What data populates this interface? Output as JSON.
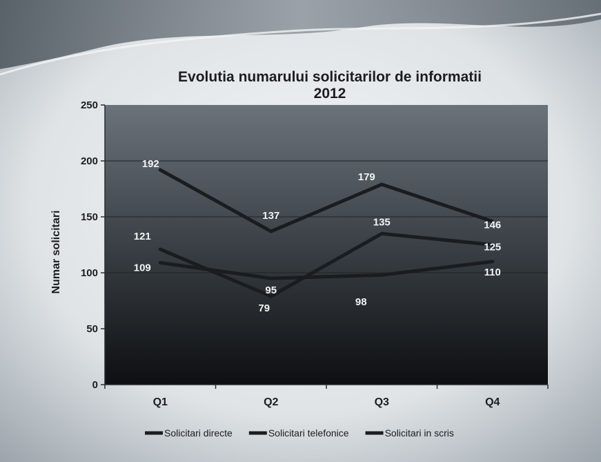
{
  "chart_data": {
    "type": "line",
    "title": "Evolutia numarului solicitarilor de informatii",
    "subtitle": "2012",
    "xlabel": "",
    "ylabel": "Numar solicitari",
    "categories": [
      "Q1",
      "Q2",
      "Q3",
      "Q4"
    ],
    "ylim": [
      0,
      250
    ],
    "yticks": [
      0,
      50,
      100,
      150,
      200,
      250
    ],
    "grid": true,
    "legend_position": "bottom",
    "series": [
      {
        "name": "Solicitari directe",
        "values": [
          192,
          137,
          179,
          146
        ],
        "color": "#1a1c1f"
      },
      {
        "name": "Solicitari telefonice",
        "values": [
          121,
          79,
          135,
          125
        ],
        "color": "#1a1c1f"
      },
      {
        "name": "Solicitari in scris",
        "values": [
          109,
          95,
          98,
          110
        ],
        "color": "#1a1c1f"
      }
    ]
  }
}
